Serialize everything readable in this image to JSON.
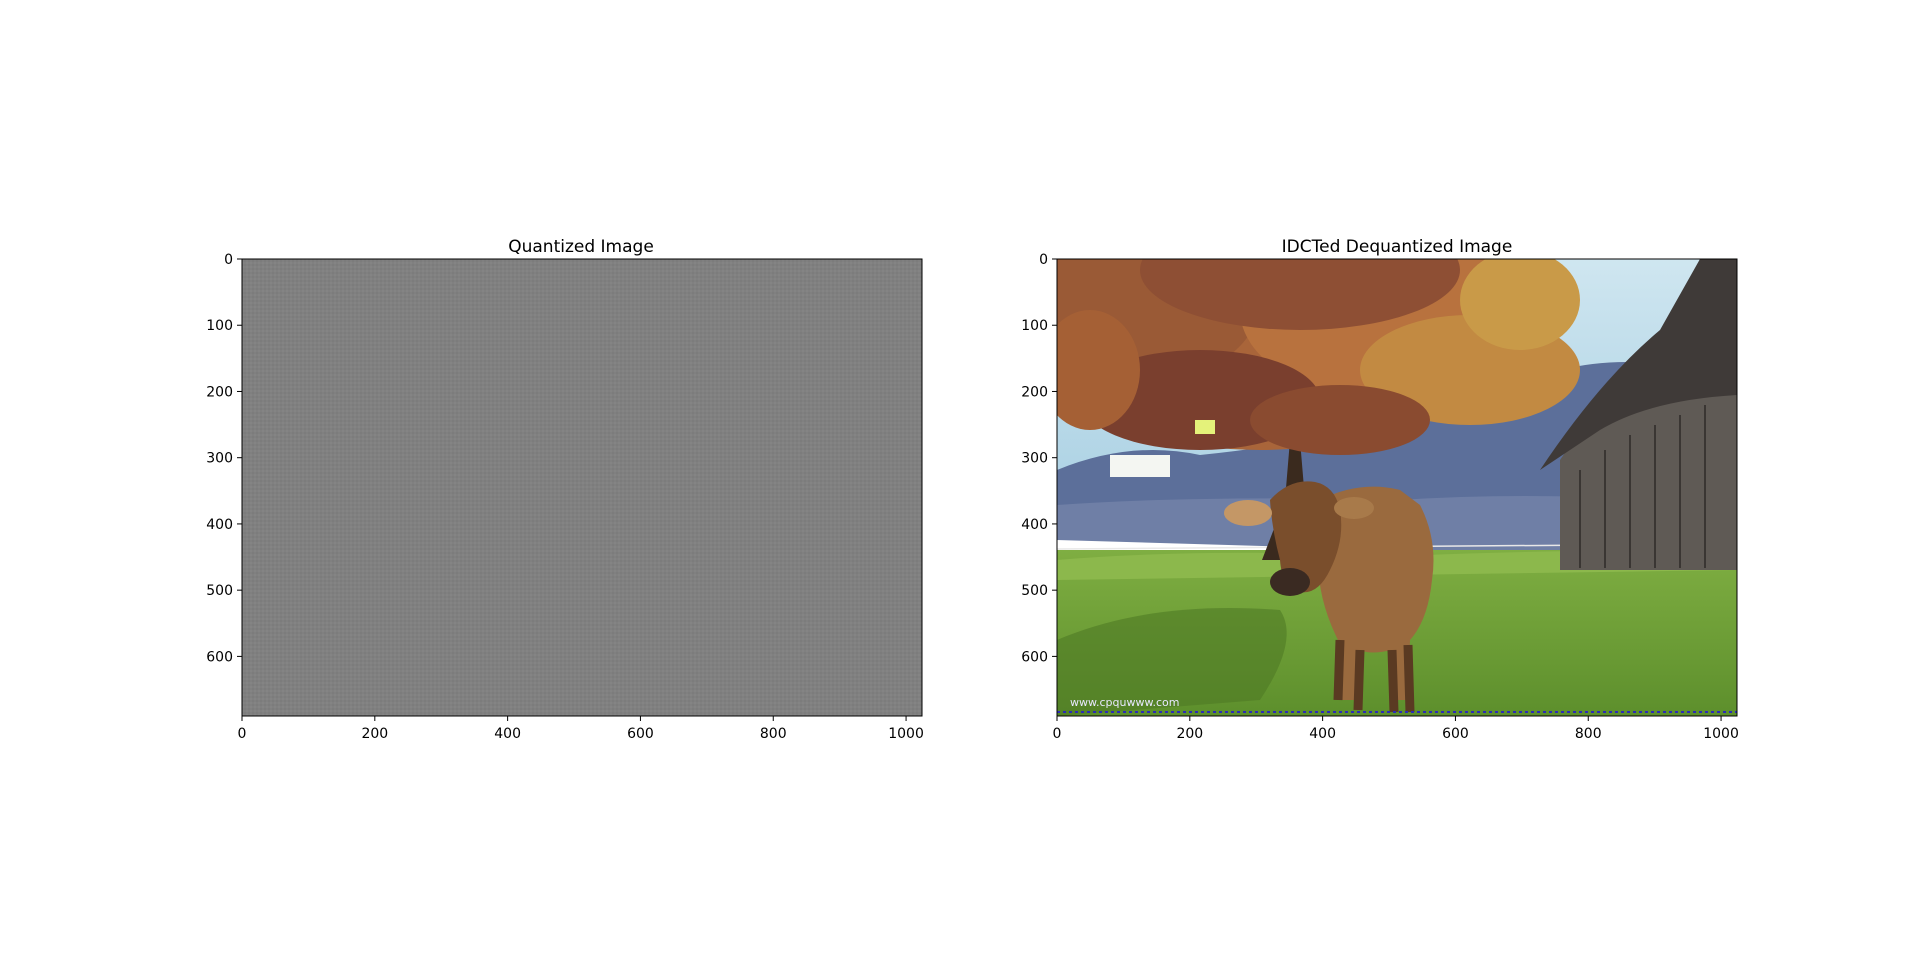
{
  "figure": {
    "background": "#ffffff"
  },
  "chart_data": [
    {
      "type": "image",
      "title": "Quantized Image",
      "xlim": [
        0,
        1024
      ],
      "ylim": [
        690,
        0
      ],
      "xticks": [
        0,
        200,
        400,
        600,
        800,
        1000
      ],
      "yticks": [
        0,
        100,
        200,
        300,
        400,
        500,
        600
      ],
      "content": "uniform gray quantized DCT coefficients",
      "colors": {
        "fill": "#808080"
      }
    },
    {
      "type": "image",
      "title": "IDCTed Dequantized Image",
      "xlim": [
        0,
        1024
      ],
      "ylim": [
        690,
        0
      ],
      "xticks": [
        0,
        200,
        400,
        600,
        800,
        1000
      ],
      "yticks": [
        0,
        100,
        200,
        300,
        400,
        500,
        600
      ],
      "content": "reconstructed photo: brown cow on green meadow, autumn tree, wooden barn, blue sky and hills",
      "colors": {
        "sky": "#b8dbe9",
        "hills": "#5c6f9a",
        "tree": "#b06a3a",
        "tree_dark": "#7a3f2e",
        "grass": "#6f9e3a",
        "grass_light": "#8fb84a",
        "barn": "#5f5a55",
        "roof": "#3f3a38",
        "cow": "#9a6a3e",
        "cow_dark": "#5a3a22"
      },
      "watermark_text": "www.cpquwww.com"
    }
  ]
}
